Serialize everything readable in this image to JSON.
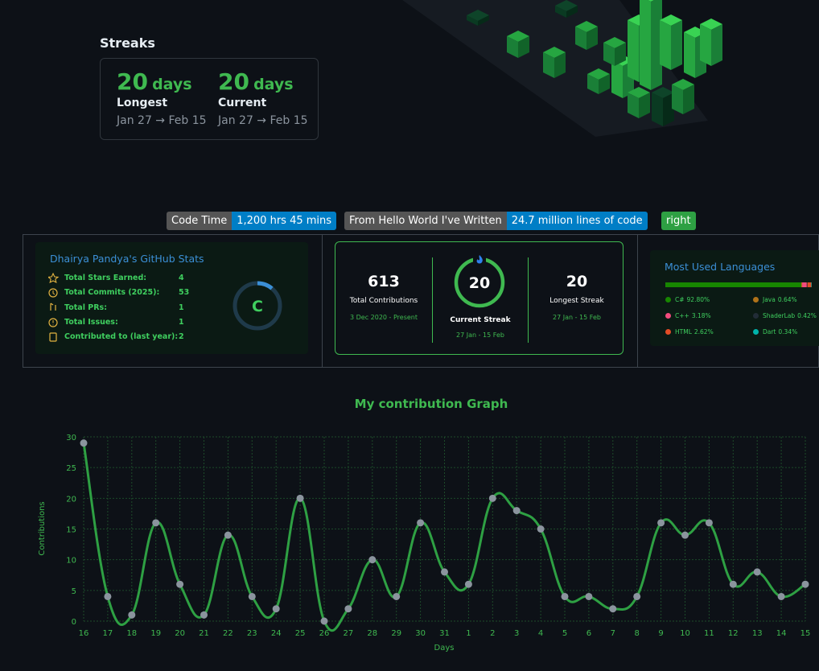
{
  "streaks": {
    "title": "Streaks",
    "longest": {
      "value": "20",
      "unit": "days",
      "label": "Longest",
      "range": "Jan 27 → Feb 15"
    },
    "current": {
      "value": "20",
      "unit": "days",
      "label": "Current",
      "range": "Jan 27 → Feb 15"
    }
  },
  "badges": [
    {
      "label": "Code Time",
      "message": "1,200 hrs 45 mins"
    },
    {
      "label": "From Hello World I've Written",
      "message": "24.7 million lines of code"
    },
    {
      "message": "right"
    }
  ],
  "stats_card": {
    "title": "Dhairya Pandya's GitHub Stats",
    "rows": [
      {
        "label": "Total Stars Earned:",
        "value": "4"
      },
      {
        "label": "Total Commits (2025):",
        "value": "53"
      },
      {
        "label": "Total PRs:",
        "value": "1"
      },
      {
        "label": "Total Issues:",
        "value": "1"
      },
      {
        "label": "Contributed to (last year):",
        "value": "2"
      }
    ],
    "grade": "C"
  },
  "streak_card": {
    "total": {
      "value": "613",
      "label": "Total Contributions",
      "range": "3 Dec 2020 - Present"
    },
    "current": {
      "value": "20",
      "label": "Current Streak",
      "range": "27 Jan - 15 Feb"
    },
    "longest": {
      "value": "20",
      "label": "Longest Streak",
      "range": "27 Jan - 15 Feb"
    }
  },
  "languages_card": {
    "title": "Most Used Languages",
    "languages": [
      {
        "name": "C#",
        "value": 92.8,
        "label": "92.80%",
        "color": "#178600"
      },
      {
        "name": "Java",
        "value": 0.64,
        "label": "0.64%",
        "color": "#b07219"
      },
      {
        "name": "C++",
        "value": 3.18,
        "label": "3.18%",
        "color": "#f34b7d"
      },
      {
        "name": "ShaderLab",
        "value": 0.42,
        "label": "0.42%",
        "color": "#222c37"
      },
      {
        "name": "HTML",
        "value": 2.62,
        "label": "2.62%",
        "color": "#e34c26"
      },
      {
        "name": "Dart",
        "value": 0.34,
        "label": "0.34%",
        "color": "#00b4ab"
      }
    ]
  },
  "chart_data": {
    "type": "line",
    "title": "My contribution Graph",
    "x_label": "Days",
    "y_label": "Contributions",
    "categories": [
      "16",
      "17",
      "18",
      "19",
      "20",
      "21",
      "22",
      "23",
      "24",
      "25",
      "26",
      "27",
      "28",
      "29",
      "30",
      "31",
      "1",
      "2",
      "3",
      "4",
      "5",
      "6",
      "7",
      "8",
      "9",
      "10",
      "11",
      "12",
      "13",
      "14",
      "15"
    ],
    "series": [
      {
        "name": "Contributions",
        "color": "#2ea043",
        "values": [
          29,
          4,
          1,
          16,
          6,
          1,
          14,
          4,
          2,
          20,
          0,
          2,
          10,
          4,
          16,
          8,
          6,
          20,
          18,
          15,
          4,
          4,
          2,
          4,
          16,
          14,
          16,
          6,
          8,
          4,
          6
        ]
      }
    ],
    "ylim": [
      0,
      30
    ],
    "yticks": [
      0,
      5,
      10,
      15,
      20,
      25,
      30
    ],
    "grid": true
  }
}
